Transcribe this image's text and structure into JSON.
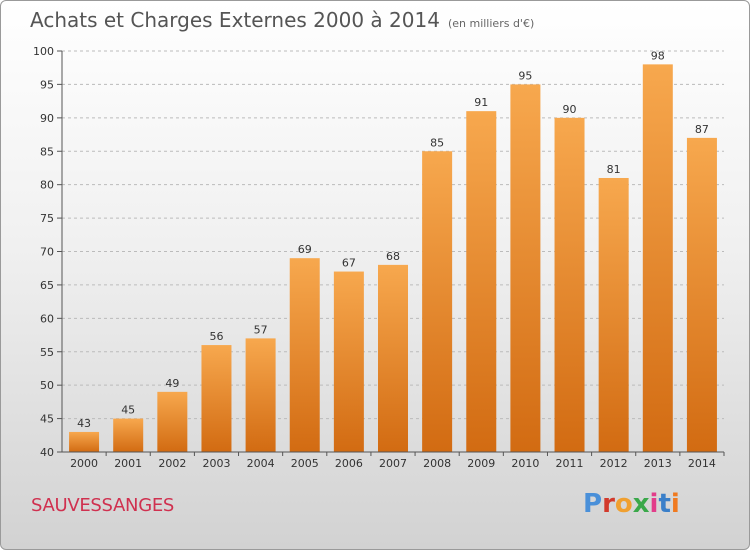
{
  "header": {
    "title": "Achats et Charges Externes 2000 à 2014",
    "unit": "(en milliers d'€)"
  },
  "commune": "SAUVESSANGES",
  "logo": {
    "text": "Proxiti",
    "colors": [
      "#4a90d9",
      "#d23a2c",
      "#f0a030",
      "#3aa84a",
      "#e23d8a",
      "#3a7fc9",
      "#f07a20"
    ]
  },
  "colors": {
    "bar_top": "#f7a84e",
    "bar_bottom": "#d26b12",
    "grid": "#bbbbbb",
    "axis": "#555555"
  },
  "chart_data": {
    "type": "bar",
    "title": "Achats et Charges Externes 2000 à 2014",
    "subtitle": "(en milliers d'€)",
    "xlabel": "",
    "ylabel": "",
    "categories": [
      "2000",
      "2001",
      "2002",
      "2003",
      "2004",
      "2005",
      "2006",
      "2007",
      "2008",
      "2009",
      "2010",
      "2011",
      "2012",
      "2013",
      "2014"
    ],
    "values": [
      43,
      45,
      49,
      56,
      57,
      69,
      67,
      68,
      85,
      91,
      95,
      90,
      81,
      98,
      87
    ],
    "ylim": [
      40,
      100
    ],
    "yticks": [
      40,
      45,
      50,
      55,
      60,
      65,
      70,
      75,
      80,
      85,
      90,
      95,
      100
    ],
    "grid": "horizontal dashed",
    "legend": "none"
  }
}
